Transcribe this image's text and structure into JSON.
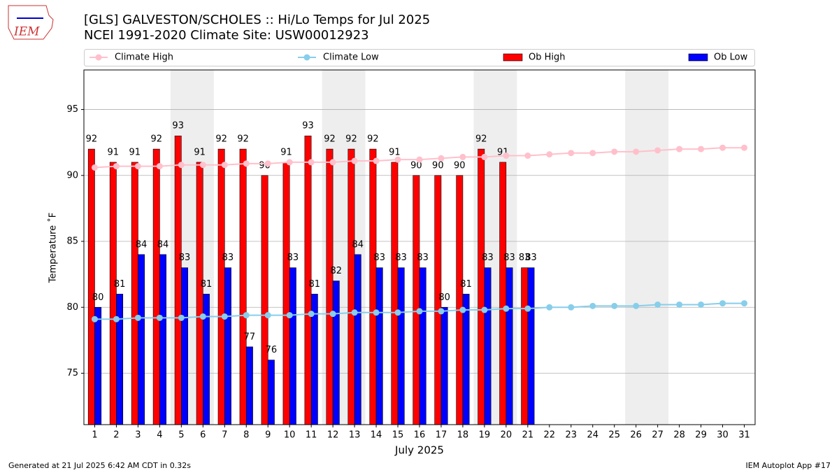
{
  "chart_data": {
    "type": "bar_line",
    "logo_text": "IEM",
    "title": "[GLS] GALVESTON/SCHOLES :: Hi/Lo Temps for Jul 2025",
    "subtitle": "NCEI 1991-2020 Climate Site: USW00012923",
    "xlabel": "July 2025",
    "ylabel": "Temperature ˚F",
    "footer_left": "Generated at 21 Jul 2025 6:42 AM CDT in 0.32s",
    "footer_right": "IEM Autoplot App #17",
    "x": [
      1,
      2,
      3,
      4,
      5,
      6,
      7,
      8,
      9,
      10,
      11,
      12,
      13,
      14,
      15,
      16,
      17,
      18,
      19,
      20,
      21,
      22,
      23,
      24,
      25,
      26,
      27,
      28,
      29,
      30,
      31
    ],
    "xlim": [
      0.5,
      31.5
    ],
    "xticks": [
      1,
      2,
      3,
      4,
      5,
      6,
      7,
      8,
      9,
      10,
      11,
      12,
      13,
      14,
      15,
      16,
      17,
      18,
      19,
      20,
      21,
      22,
      23,
      24,
      25,
      26,
      27,
      28,
      29,
      30,
      31
    ],
    "ylim": [
      71.1,
      98
    ],
    "yticks": [
      75,
      80,
      85,
      90,
      95
    ],
    "grid": true,
    "shaded": [
      [
        4.5,
        6.5
      ],
      [
        11.5,
        13.5
      ],
      [
        18.5,
        20.5
      ],
      [
        25.5,
        27.5
      ]
    ],
    "series": [
      {
        "name": "Climate High",
        "kind": "line",
        "color": "#ffc0cb",
        "values": [
          90.6,
          90.7,
          90.7,
          90.7,
          90.8,
          90.8,
          90.8,
          90.9,
          90.9,
          91.0,
          91.0,
          91.0,
          91.1,
          91.1,
          91.2,
          91.2,
          91.3,
          91.4,
          91.4,
          91.5,
          91.5,
          91.6,
          91.7,
          91.7,
          91.8,
          91.8,
          91.9,
          92.0,
          92.0,
          92.1,
          92.1
        ]
      },
      {
        "name": "Climate Low",
        "kind": "line",
        "color": "#87ceeb",
        "values": [
          79.1,
          79.1,
          79.2,
          79.2,
          79.2,
          79.3,
          79.3,
          79.4,
          79.4,
          79.4,
          79.5,
          79.5,
          79.6,
          79.6,
          79.6,
          79.7,
          79.7,
          79.8,
          79.8,
          79.9,
          79.9,
          80.0,
          80.0,
          80.1,
          80.1,
          80.1,
          80.2,
          80.2,
          80.2,
          80.3,
          80.3
        ]
      },
      {
        "name": "Ob High",
        "kind": "bar",
        "color": "#ff0000",
        "values": [
          92,
          91,
          91,
          92,
          93,
          91,
          92,
          92,
          90,
          91,
          93,
          92,
          92,
          92,
          91,
          90,
          90,
          90,
          92,
          91,
          83,
          null,
          null,
          null,
          null,
          null,
          null,
          null,
          null,
          null,
          null
        ]
      },
      {
        "name": "Ob Low",
        "kind": "bar",
        "color": "#0000ff",
        "values": [
          80,
          81,
          84,
          84,
          83,
          81,
          83,
          77,
          76,
          83,
          81,
          82,
          84,
          83,
          83,
          83,
          80,
          81,
          83,
          83,
          83,
          null,
          null,
          null,
          null,
          null,
          null,
          null,
          null,
          null,
          null
        ]
      }
    ]
  }
}
